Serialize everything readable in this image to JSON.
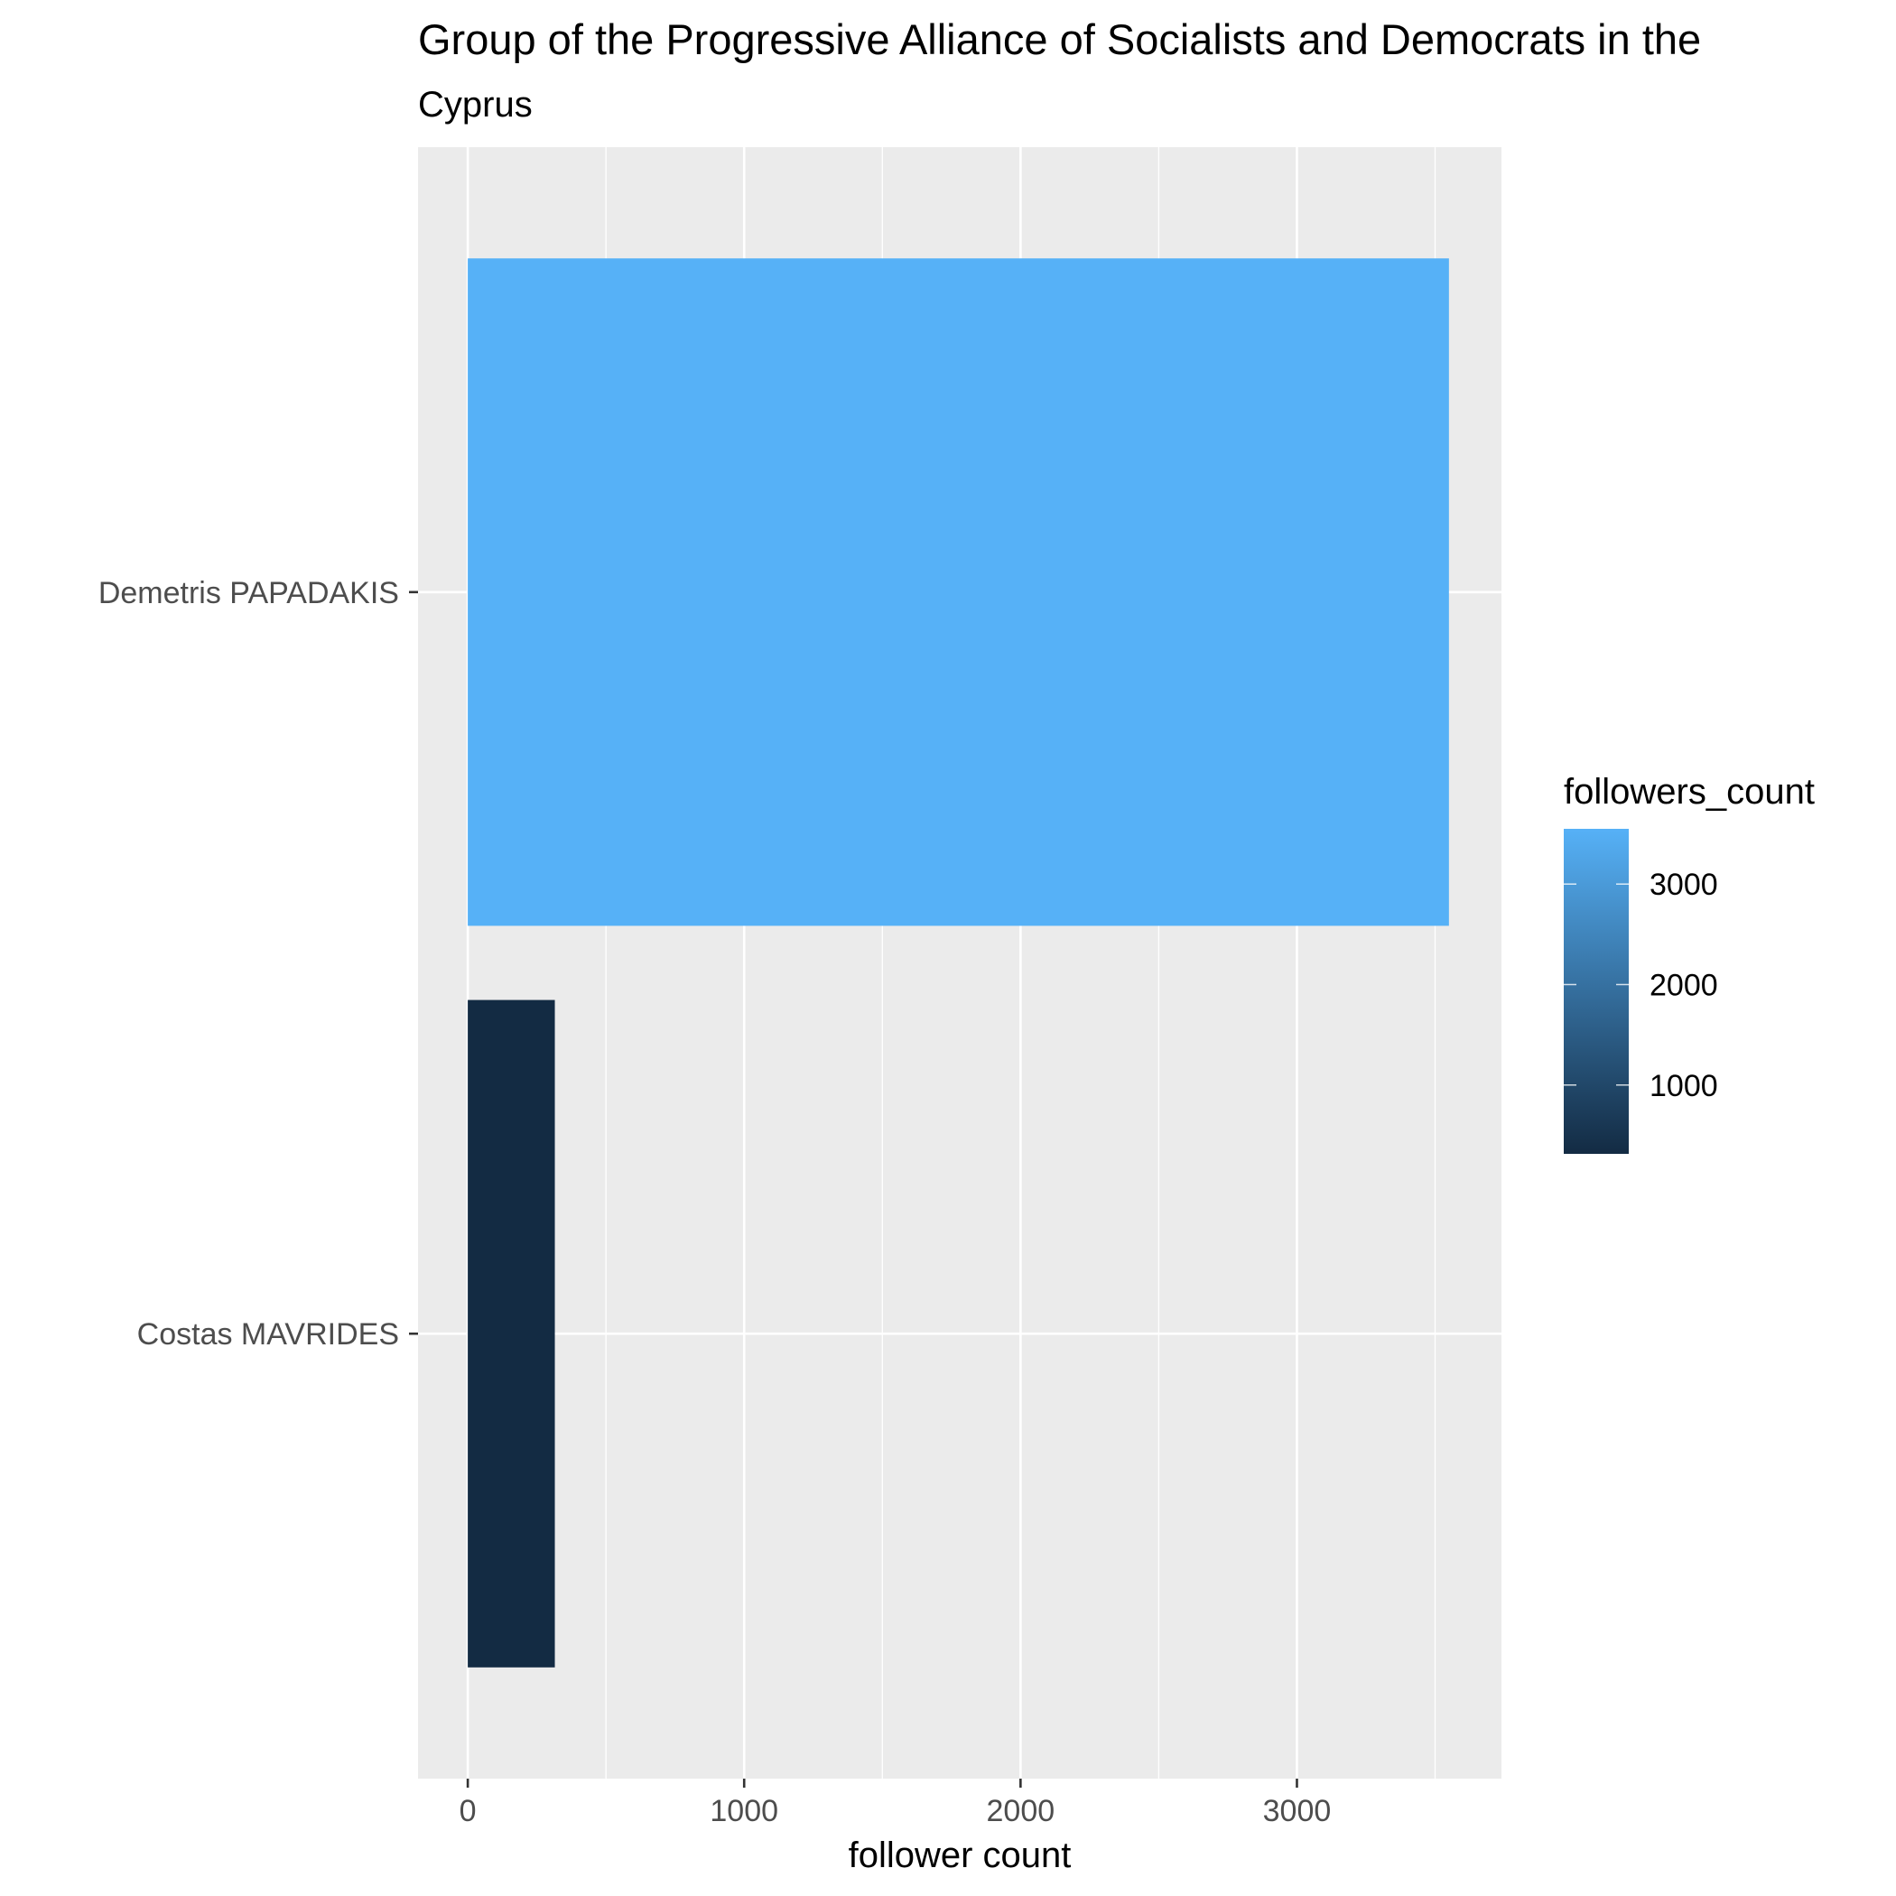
{
  "chart_data": {
    "type": "bar",
    "orientation": "horizontal",
    "title": "Group of the Progressive Alliance of Socialists and Democrats in the",
    "subtitle": "Cyprus",
    "xlabel": "follower count",
    "ylabel": "",
    "categories": [
      "Demetris PAPADAKIS",
      "Costas MAVRIDES"
    ],
    "values": [
      3550,
      315
    ],
    "xlim": [
      -180,
      3740
    ],
    "x_ticks": [
      0,
      1000,
      2000,
      3000
    ],
    "x_tick_labels": [
      "0",
      "1000",
      "2000",
      "3000"
    ],
    "grid": true,
    "background": "#ebebeb",
    "legend": {
      "title": "followers_count",
      "type": "colorbar",
      "placement": "right",
      "range": [
        315,
        3550
      ],
      "ticks": [
        1000,
        2000,
        3000
      ],
      "tick_labels": [
        "1000",
        "2000",
        "3000"
      ],
      "color_low": "#132b43",
      "color_high": "#56b1f7"
    }
  }
}
